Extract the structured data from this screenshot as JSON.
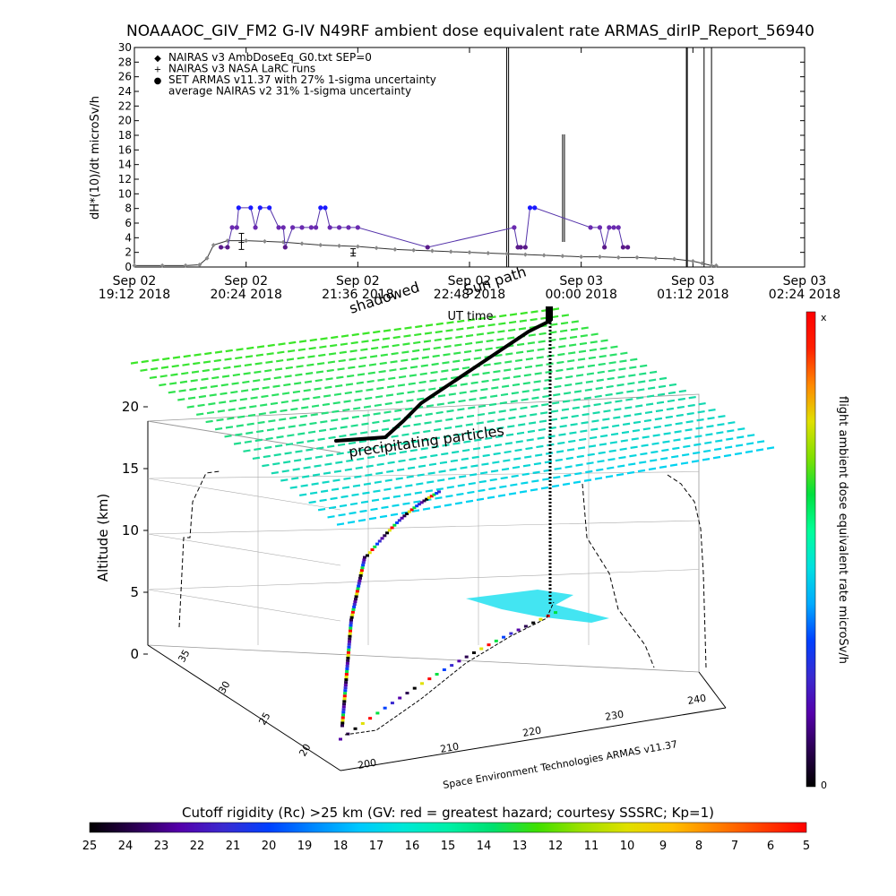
{
  "chart_data": [
    {
      "type": "scatter",
      "title": "NOAAAOC_GIV_FM2 G-IV   N49RF  ambient dose equivalent rate ARMAS_dirIP_Report_56940",
      "ylabel": "dH*(10)/dt microSv/h",
      "xlabel": "UT time",
      "ylim": [
        0,
        30
      ],
      "yticks": [
        "0",
        "2",
        "4",
        "6",
        "8",
        "10",
        "12",
        "14",
        "16",
        "18",
        "20",
        "22",
        "24",
        "26",
        "28",
        "30"
      ],
      "xticks": [
        {
          "date": "Sep 02",
          "time": "19:12 2018"
        },
        {
          "date": "Sep 02",
          "time": "20:24 2018"
        },
        {
          "date": "Sep 02",
          "time": "21:36 2018"
        },
        {
          "date": "Sep 02",
          "time": "22:48 2018"
        },
        {
          "date": "Sep 03",
          "time": "00:00 2018"
        },
        {
          "date": "Sep 03",
          "time": "01:12 2018"
        },
        {
          "date": "Sep 03",
          "time": "02:24 2018"
        }
      ],
      "legend": [
        {
          "marker": "◆",
          "color": "#888888",
          "label": "NAIRAS v3 AmbDoseEq_G0.txt SEP=0"
        },
        {
          "marker": "+",
          "color": "#000000",
          "label": "NAIRAS v3 NASA LaRC runs"
        },
        {
          "marker": "●",
          "color": "#1a1aff",
          "label": "SET ARMAS v11.37 with 27% 1-sigma uncertainty"
        },
        {
          "marker": "",
          "color": "#000000",
          "label": "average NAIRAS v2 31% 1-sigma uncertainty"
        }
      ],
      "series": [
        {
          "name": "NAIRAS v3 AmbDoseEq_G0.txt SEP=0",
          "x": [
            0.0,
            0.3,
            0.55,
            0.7,
            0.78,
            0.85,
            1.0,
            1.2,
            1.4,
            1.6,
            1.8,
            2.0,
            2.2,
            2.4,
            2.6,
            2.8,
            3.0,
            3.2,
            3.4,
            3.6,
            3.8,
            4.0,
            4.2,
            4.4,
            4.6,
            4.8,
            5.0,
            5.2,
            5.4,
            5.6,
            5.8,
            6.0,
            6.1,
            6.2,
            6.25
          ],
          "y": [
            0.2,
            0.2,
            0.2,
            0.3,
            1.2,
            3.0,
            3.6,
            3.6,
            3.5,
            3.4,
            3.2,
            3.0,
            2.9,
            2.8,
            2.6,
            2.4,
            2.3,
            2.2,
            2.1,
            2.0,
            1.9,
            1.8,
            1.7,
            1.6,
            1.5,
            1.4,
            1.4,
            1.3,
            1.3,
            1.2,
            1.1,
            0.8,
            0.5,
            0.2,
            0.2
          ]
        },
        {
          "name": "NAIRAS v3 NASA LaRC runs",
          "x": [
            1.15,
            2.35
          ],
          "y": [
            3.5,
            2.0
          ],
          "err": [
            1.1,
            0.5
          ]
        },
        {
          "name": "SET ARMAS v11.37 with 27% 1-sigma uncertainty",
          "x": [
            0.93,
            1.0,
            1.05,
            1.1,
            1.12,
            1.25,
            1.3,
            1.35,
            1.45,
            1.55,
            1.6,
            1.62,
            1.7,
            1.8,
            1.9,
            1.95,
            2.0,
            2.05,
            2.1,
            2.2,
            2.3,
            2.4,
            3.15,
            4.08,
            4.12,
            4.15,
            4.2,
            4.25,
            4.3,
            4.9,
            5.0,
            5.05,
            5.1,
            5.15,
            5.2,
            5.25,
            5.3
          ],
          "y": [
            2.7,
            2.7,
            5.4,
            5.4,
            8.1,
            8.1,
            5.4,
            8.1,
            8.1,
            5.4,
            5.4,
            2.7,
            5.4,
            5.4,
            5.4,
            5.4,
            8.1,
            8.1,
            5.4,
            5.4,
            5.4,
            5.4,
            2.7,
            5.4,
            2.7,
            2.7,
            2.7,
            8.1,
            8.1,
            5.4,
            5.4,
            2.7,
            5.4,
            5.4,
            5.4,
            2.7,
            2.7
          ]
        }
      ],
      "xlim": [
        0,
        7.2
      ]
    },
    {
      "type": "scatter",
      "title": "",
      "zlabel": "Altitude (km)",
      "ztick_labels": [
        "0",
        "5",
        "10",
        "15",
        "20"
      ],
      "lat_tick_labels": [
        "20",
        "25",
        "30",
        "35"
      ],
      "lon_tick_labels": [
        "200",
        "210",
        "220",
        "230",
        "240"
      ],
      "credit": "Space Environment Technologies ARMAS v11.37",
      "annotations": [
        "precipitating particles",
        "shadowed",
        "Sun path",
        "UT time"
      ],
      "colorbar_label": "flight ambient dose equivalent rate microSv/h",
      "colorbar_top": "x",
      "colorbar_bottom": "0",
      "colorbar_colors": [
        "#000000",
        "#2a0050",
        "#5500aa",
        "#3a2ad0",
        "#0040ff",
        "#00aaff",
        "#00e0e0",
        "#00ff99",
        "#00e040",
        "#80e000",
        "#e0e000",
        "#ff8800",
        "#ff2000",
        "#ff0000"
      ]
    },
    {
      "type": "heatmap",
      "title": "Cutoff rigidity (Rc) >25 km (GV: red = greatest hazard; courtesy SSSRC; Kp=1)",
      "tick_labels": [
        "25",
        "24",
        "23",
        "22",
        "21",
        "20",
        "19",
        "18",
        "17",
        "16",
        "15",
        "14",
        "13",
        "12",
        "11",
        "10",
        "9",
        "8",
        "7",
        "6",
        "5"
      ],
      "colors": [
        "#000000",
        "#2a0050",
        "#5500aa",
        "#3a2ad0",
        "#0040ff",
        "#0088ff",
        "#00c8ff",
        "#00e8d8",
        "#00f0a8",
        "#00e070",
        "#40e000",
        "#a0e000",
        "#e0e000",
        "#ffc000",
        "#ff8000",
        "#ff4000",
        "#ff0000"
      ]
    }
  ]
}
